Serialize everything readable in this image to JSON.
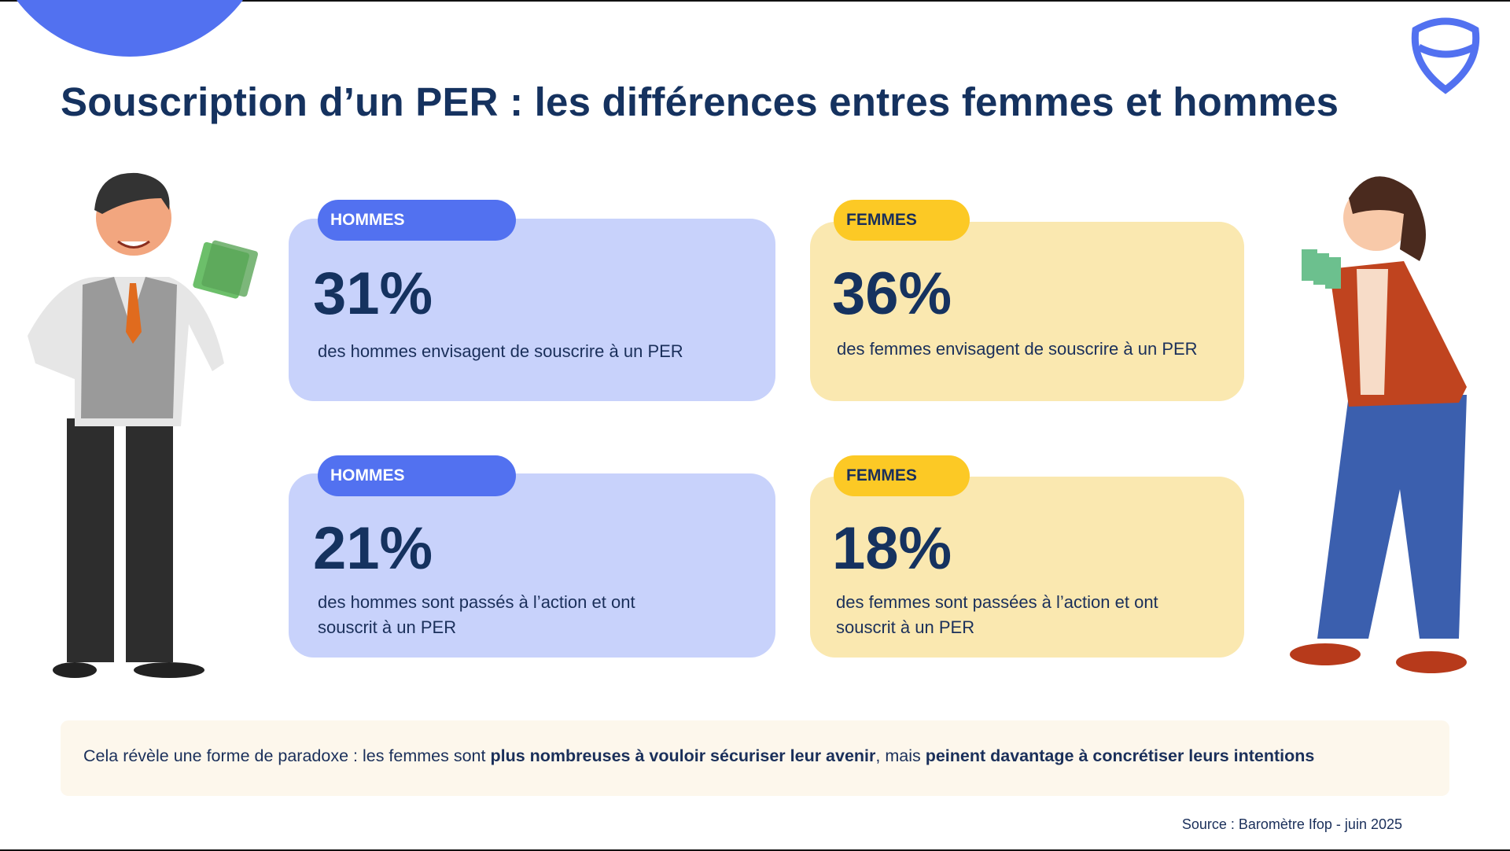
{
  "title": "Souscription d’un PER : les différences entres femmes et hommes",
  "cards": [
    {
      "tag": "HOMMES",
      "value": "31%",
      "text": "des hommes envisagent de souscrire à un PER"
    },
    {
      "tag": "FEMMES",
      "value": "36%",
      "text": "des femmes envisagent de souscrire à un PER"
    },
    {
      "tag": "HOMMES",
      "value": "21%",
      "text": "des hommes sont passés à l’action et ont souscrit à un PER"
    },
    {
      "tag": "FEMMES",
      "value": "18%",
      "text": "des femmes sont passées à l’action et ont souscrit à un PER"
    }
  ],
  "note": {
    "part1": "Cela révèle une forme de paradoxe : les femmes sont ",
    "bold1": "plus nombreuses à vouloir sécuriser leur avenir",
    "part2": ", mais ",
    "bold2": "peinent davantage à concrétiser leurs intentions"
  },
  "source": "Source : Baromètre Ifop - juin 2025",
  "colors": {
    "blue": "#5271f0",
    "navy": "#15325f",
    "yellow": "#fcc925",
    "blue_card": "#c8d2fb",
    "yellow_card": "#fae8b0"
  }
}
